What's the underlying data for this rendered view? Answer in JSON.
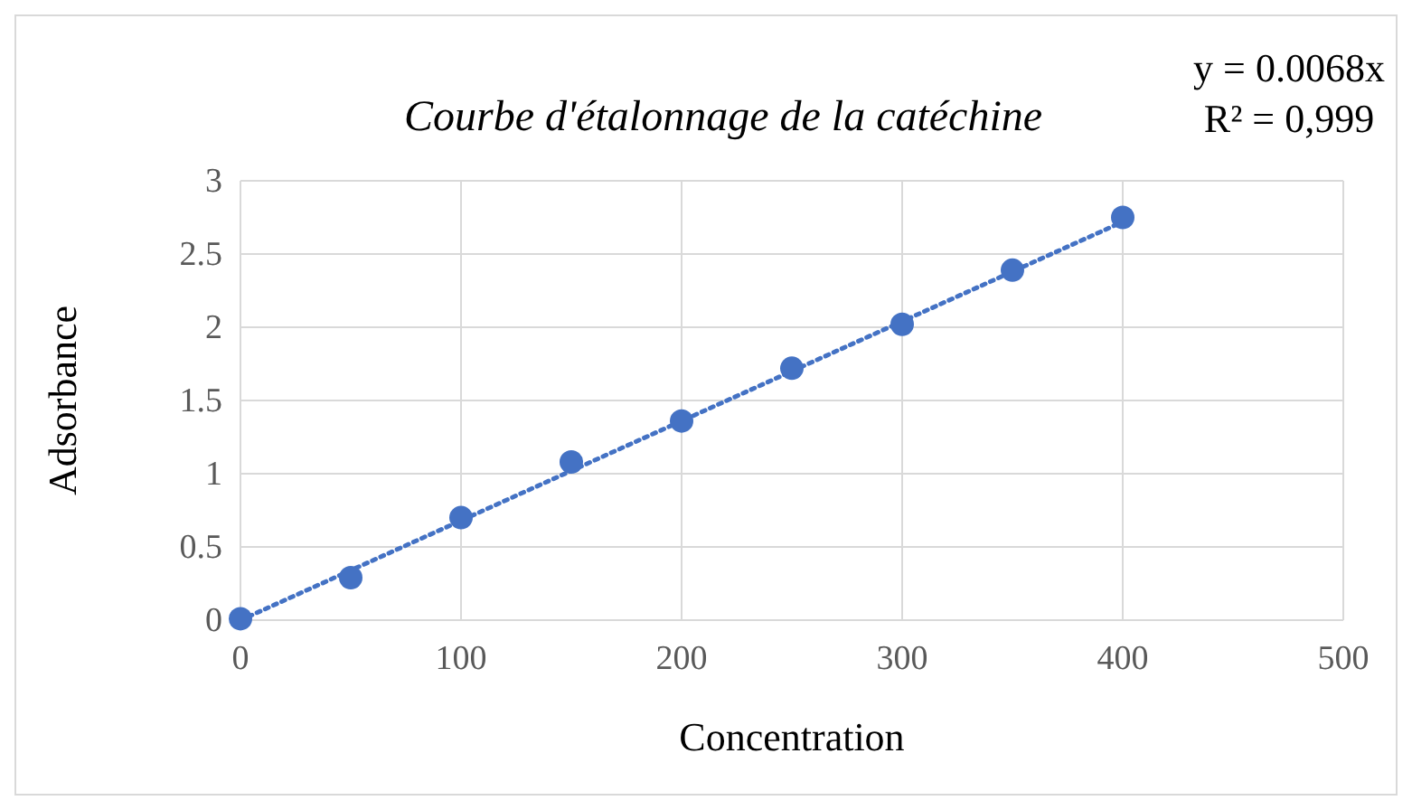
{
  "chart_data": {
    "type": "scatter",
    "title": "Courbe d'étalonnage de la catéchine",
    "xlabel": "Concentration",
    "ylabel": "Adsorbance",
    "series": [
      {
        "color": "#4472c4",
        "x": [
          0,
          50,
          100,
          150,
          200,
          250,
          300,
          350,
          400
        ],
        "values": [
          0.01,
          0.29,
          0.7,
          1.08,
          1.36,
          1.72,
          2.02,
          2.39,
          2.75
        ],
        "marker": "circle"
      },
      {
        "type": "line",
        "color": "#4472c4",
        "x": [
          0,
          400
        ],
        "values": [
          0,
          2.72
        ],
        "line_style": "dotted",
        "marker": "none"
      }
    ],
    "xlim": [
      0,
      500
    ],
    "xticks": [
      0,
      100,
      200,
      300,
      400,
      500
    ],
    "ylim": [
      0,
      3
    ],
    "yticks": [
      0,
      0.5,
      1,
      1.5,
      2,
      2.5,
      3
    ],
    "grid": true,
    "annotations": [
      "y = 0.0068x",
      "R² = 0,999"
    ]
  }
}
